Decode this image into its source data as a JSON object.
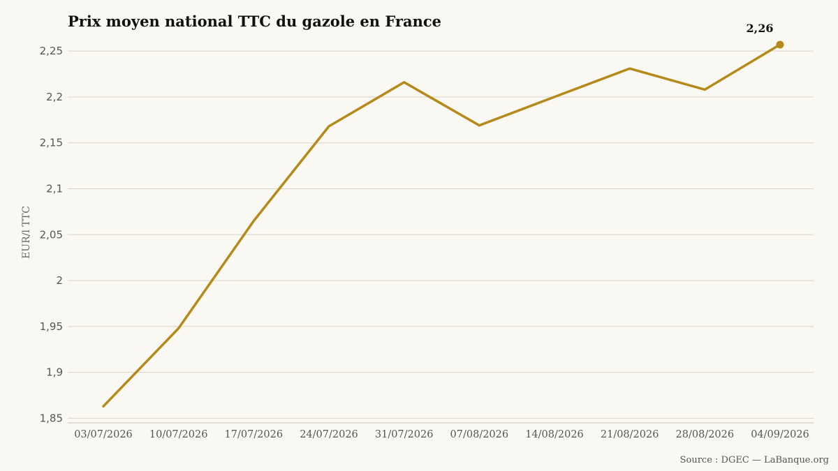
{
  "chart_data": {
    "type": "line",
    "title": "Prix moyen national TTC du gazole en France",
    "ylabel": "EUR/l TTC",
    "xlabel": "",
    "x": [
      "03/07/2026",
      "10/07/2026",
      "17/07/2026",
      "24/07/2026",
      "31/07/2026",
      "07/08/2026",
      "14/08/2026",
      "21/08/2026",
      "28/08/2026",
      "04/09/2026"
    ],
    "series": [
      {
        "values": [
          1.863,
          1.948,
          2.065,
          2.168,
          2.216,
          2.169,
          2.2,
          2.231,
          2.208,
          2.257
        ],
        "color": "#b5891a"
      }
    ],
    "ylim": [
      1.845,
      2.26
    ],
    "yticks": [
      1.85,
      1.9,
      1.95,
      2.0,
      2.05,
      2.1,
      2.15,
      2.2,
      2.25
    ],
    "ytick_labels": [
      "1,85",
      "1,9",
      "1,95",
      "2",
      "2,05",
      "2,1",
      "2,15",
      "2,2",
      "2,25"
    ],
    "grid": true,
    "last_point_label": "2,26",
    "source": "Source : DGEC — LaBanque.org"
  },
  "colors": {
    "background": "#faf8f2",
    "line": "#b5891a",
    "grid": "#d9d3c6"
  }
}
